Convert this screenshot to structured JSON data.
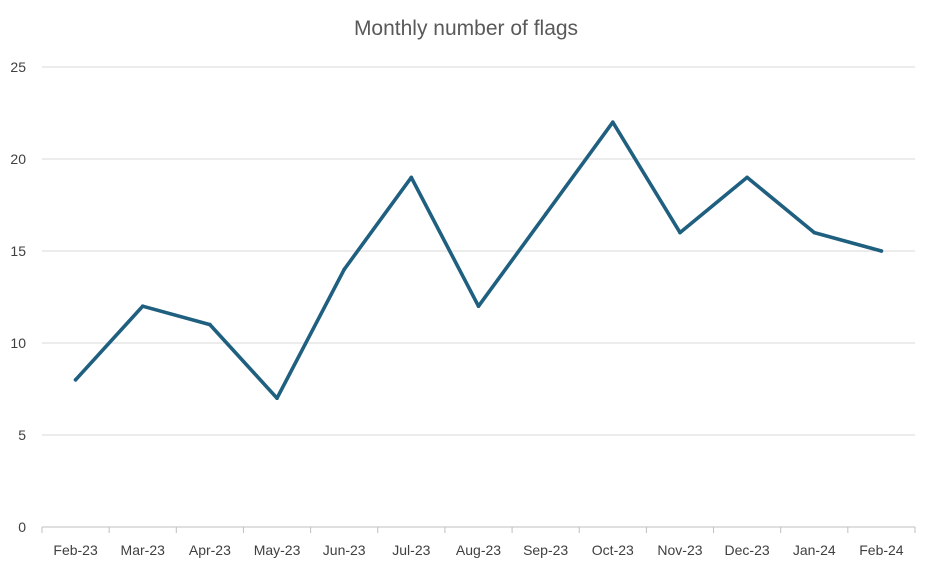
{
  "chart_data": {
    "type": "line",
    "title": "Monthly number of flags",
    "xlabel": "",
    "ylabel": "",
    "categories": [
      "Feb-23",
      "Mar-23",
      "Apr-23",
      "May-23",
      "Jun-23",
      "Jul-23",
      "Aug-23",
      "Sep-23",
      "Oct-23",
      "Nov-23",
      "Dec-23",
      "Jan-24",
      "Feb-24"
    ],
    "series": [
      {
        "values": [
          8,
          12,
          11,
          7,
          14,
          19,
          12,
          17,
          22,
          16,
          19,
          16,
          15
        ],
        "color": "#1f5f7f"
      }
    ],
    "ylim": [
      0,
      25
    ],
    "yticks": [
      0,
      5,
      10,
      15,
      20,
      25
    ],
    "grid": true,
    "legend": "none"
  }
}
